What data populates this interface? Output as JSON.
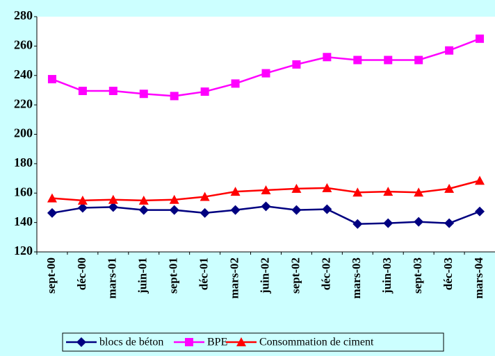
{
  "chart_data": {
    "type": "line",
    "categories": [
      "sept-00",
      "déc-00",
      "mars-01",
      "juin-01",
      "sept-01",
      "déc-01",
      "mars-02",
      "juin-02",
      "sept-02",
      "déc-02",
      "mars-03",
      "juin-03",
      "sept-03",
      "déc-03",
      "mars-04"
    ],
    "series": [
      {
        "name": "blocs de béton",
        "color": "#000080",
        "marker": "diamond",
        "values": [
          146.5,
          150,
          150.5,
          148.5,
          148.5,
          146.5,
          148.5,
          151,
          148.5,
          149,
          139,
          139.5,
          140.5,
          139.5,
          147.5
        ]
      },
      {
        "name": "BPE",
        "color": "#ff00ff",
        "marker": "square",
        "values": [
          237.5,
          229.5,
          229.5,
          227.5,
          226,
          229,
          234.5,
          241.5,
          247.5,
          252.5,
          250.5,
          250.5,
          250.5,
          257,
          265
        ]
      },
      {
        "name": "Consommation de ciment",
        "color": "#ff0000",
        "marker": "triangle",
        "values": [
          156.5,
          155,
          155.5,
          155,
          155.5,
          157.5,
          161,
          162,
          163,
          163.5,
          160.5,
          161,
          160.5,
          163,
          168.5
        ]
      }
    ],
    "ylim": [
      120,
      280
    ],
    "yticks": [
      120,
      140,
      160,
      180,
      200,
      220,
      240,
      260,
      280
    ],
    "grid": false,
    "legend": "bottom"
  }
}
